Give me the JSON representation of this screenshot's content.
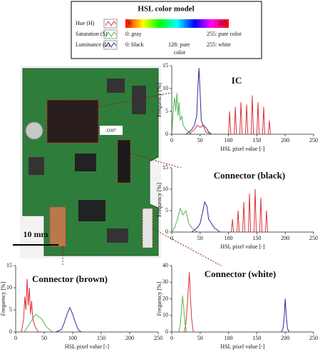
{
  "legend": {
    "title": "HSL color model",
    "hue_low": "0",
    "hue_high": "255",
    "sat_low": "0: gray",
    "sat_high": "255: pure color",
    "lum_low": "0: black",
    "lum_mid": [
      "128: pure",
      "color"
    ],
    "lum_high": "255: white"
  },
  "photo": {
    "board_label": "J2087",
    "scale_label": "10 mm"
  },
  "chart_data": [
    {
      "type": "line",
      "annotation": "IC",
      "x_label": "HSL pixel value [-]",
      "y_label": "Frequency [%]",
      "xlim": [
        0,
        250
      ],
      "xticks": [
        0,
        50,
        100,
        150,
        200,
        250
      ],
      "ylim": [
        0,
        15
      ],
      "yticks": [
        0,
        5,
        10,
        15
      ],
      "series": [
        {
          "name": "Hue (H)",
          "color": "#e0303a",
          "x": [
            30,
            40,
            45,
            50,
            55,
            60,
            70,
            90,
            100,
            102,
            104,
            110,
            112,
            114,
            120,
            122,
            124,
            130,
            132,
            134,
            140,
            142,
            144,
            150,
            152,
            154,
            160,
            162,
            164,
            170,
            172,
            174,
            180
          ],
          "values": [
            0,
            1,
            2,
            1.5,
            2,
            0.5,
            0,
            0,
            0,
            5,
            0,
            0,
            6,
            0,
            0,
            7,
            0,
            0,
            6.5,
            0,
            0,
            8.5,
            0,
            0,
            7,
            0,
            0,
            6,
            0,
            0,
            3,
            0,
            0
          ]
        },
        {
          "name": "Saturation (S)",
          "color": "#4db84d",
          "x": [
            0,
            3,
            5,
            7,
            9,
            11,
            13,
            15,
            18,
            20,
            25,
            30,
            35
          ],
          "values": [
            0,
            6,
            8,
            5,
            9,
            4,
            7,
            3,
            4,
            2,
            1,
            0.5,
            0
          ]
        },
        {
          "name": "Luminance (L)",
          "color": "#2c2c9e",
          "x": [
            25,
            30,
            35,
            40,
            44,
            46,
            48,
            50,
            52,
            55,
            60,
            65,
            70
          ],
          "values": [
            0,
            0.5,
            1,
            2,
            4,
            10,
            14.5,
            9,
            3,
            2,
            1.5,
            0.5,
            0
          ]
        }
      ]
    },
    {
      "type": "line",
      "annotation": "Connector (black)",
      "x_label": "HSL pixel value [-]",
      "y_label": "Frequency [%]",
      "xlim": [
        0,
        250
      ],
      "xticks": [
        0,
        50,
        100,
        150,
        200,
        250
      ],
      "ylim": [
        0,
        15
      ],
      "yticks": [
        0,
        5,
        10,
        15
      ],
      "series": [
        {
          "color": "#e0303a",
          "x": [
            100,
            105,
            107,
            109,
            115,
            117,
            119,
            125,
            127,
            129,
            135,
            137,
            139,
            145,
            147,
            149,
            155,
            157,
            159,
            165,
            167,
            169,
            175,
            180
          ],
          "values": [
            0,
            0,
            3,
            0,
            0,
            5,
            0,
            0,
            7,
            0,
            0,
            9,
            0,
            0,
            10,
            0,
            0,
            8,
            0,
            0,
            5,
            0,
            0,
            0
          ]
        },
        {
          "color": "#4db84d",
          "x": [
            0,
            5,
            10,
            15,
            20,
            25,
            30,
            35,
            40,
            45
          ],
          "values": [
            0,
            1,
            3,
            5.5,
            4,
            5,
            2,
            1,
            0.5,
            0
          ]
        },
        {
          "color": "#2c2c9e",
          "x": [
            35,
            40,
            45,
            50,
            55,
            58,
            62,
            65,
            70,
            75,
            80,
            85
          ],
          "values": [
            0,
            0.5,
            1,
            2,
            5,
            7,
            6,
            3,
            2,
            1,
            0.5,
            0
          ]
        }
      ]
    },
    {
      "type": "line",
      "annotation": "Connector (brown)",
      "x_label": "HSL pixel value [-]",
      "y_label": "Frequency [%]",
      "xlim": [
        0,
        250
      ],
      "xticks": [
        0,
        50,
        100,
        150,
        200,
        250
      ],
      "ylim": [
        0,
        15
      ],
      "yticks": [
        0,
        5,
        10,
        15
      ],
      "series": [
        {
          "color": "#e0303a",
          "x": [
            10,
            14,
            16,
            18,
            20,
            22,
            24,
            26,
            28,
            30,
            32,
            35,
            40
          ],
          "values": [
            0,
            3,
            8,
            5,
            12,
            6,
            10,
            4,
            7,
            3,
            2,
            1,
            0
          ]
        },
        {
          "color": "#4db84d",
          "x": [
            15,
            20,
            25,
            30,
            35,
            40,
            45,
            50,
            55,
            60,
            65
          ],
          "values": [
            0,
            1,
            2,
            3,
            4,
            3.5,
            3,
            2,
            1,
            0.5,
            0
          ]
        },
        {
          "color": "#2c2c9e",
          "x": [
            70,
            80,
            85,
            90,
            95,
            100,
            105,
            110,
            115
          ],
          "values": [
            0,
            0.5,
            2,
            4,
            5.5,
            4,
            2,
            0.5,
            0
          ]
        }
      ]
    },
    {
      "type": "line",
      "annotation": "Connector (white)",
      "x_label": "HSL pixel value [-]",
      "y_label": "Frequency [%]",
      "xlim": [
        0,
        250
      ],
      "xticks": [
        0,
        50,
        100,
        150,
        200,
        250
      ],
      "ylim": [
        0,
        40
      ],
      "yticks": [
        0,
        10,
        20,
        30,
        40
      ],
      "series": [
        {
          "color": "#e0303a",
          "x": [
            22,
            25,
            27,
            29,
            31,
            33,
            35,
            38
          ],
          "values": [
            0,
            5,
            15,
            25,
            36,
            20,
            8,
            0
          ]
        },
        {
          "color": "#4db84d",
          "x": [
            12,
            15,
            17,
            19,
            21,
            23,
            26
          ],
          "values": [
            0,
            4,
            12,
            22,
            15,
            6,
            0
          ]
        },
        {
          "color": "#2c2c9e",
          "x": [
            193,
            196,
            198,
            200,
            202,
            204,
            207
          ],
          "values": [
            0,
            2,
            8,
            20,
            9,
            2,
            0
          ]
        }
      ]
    }
  ]
}
